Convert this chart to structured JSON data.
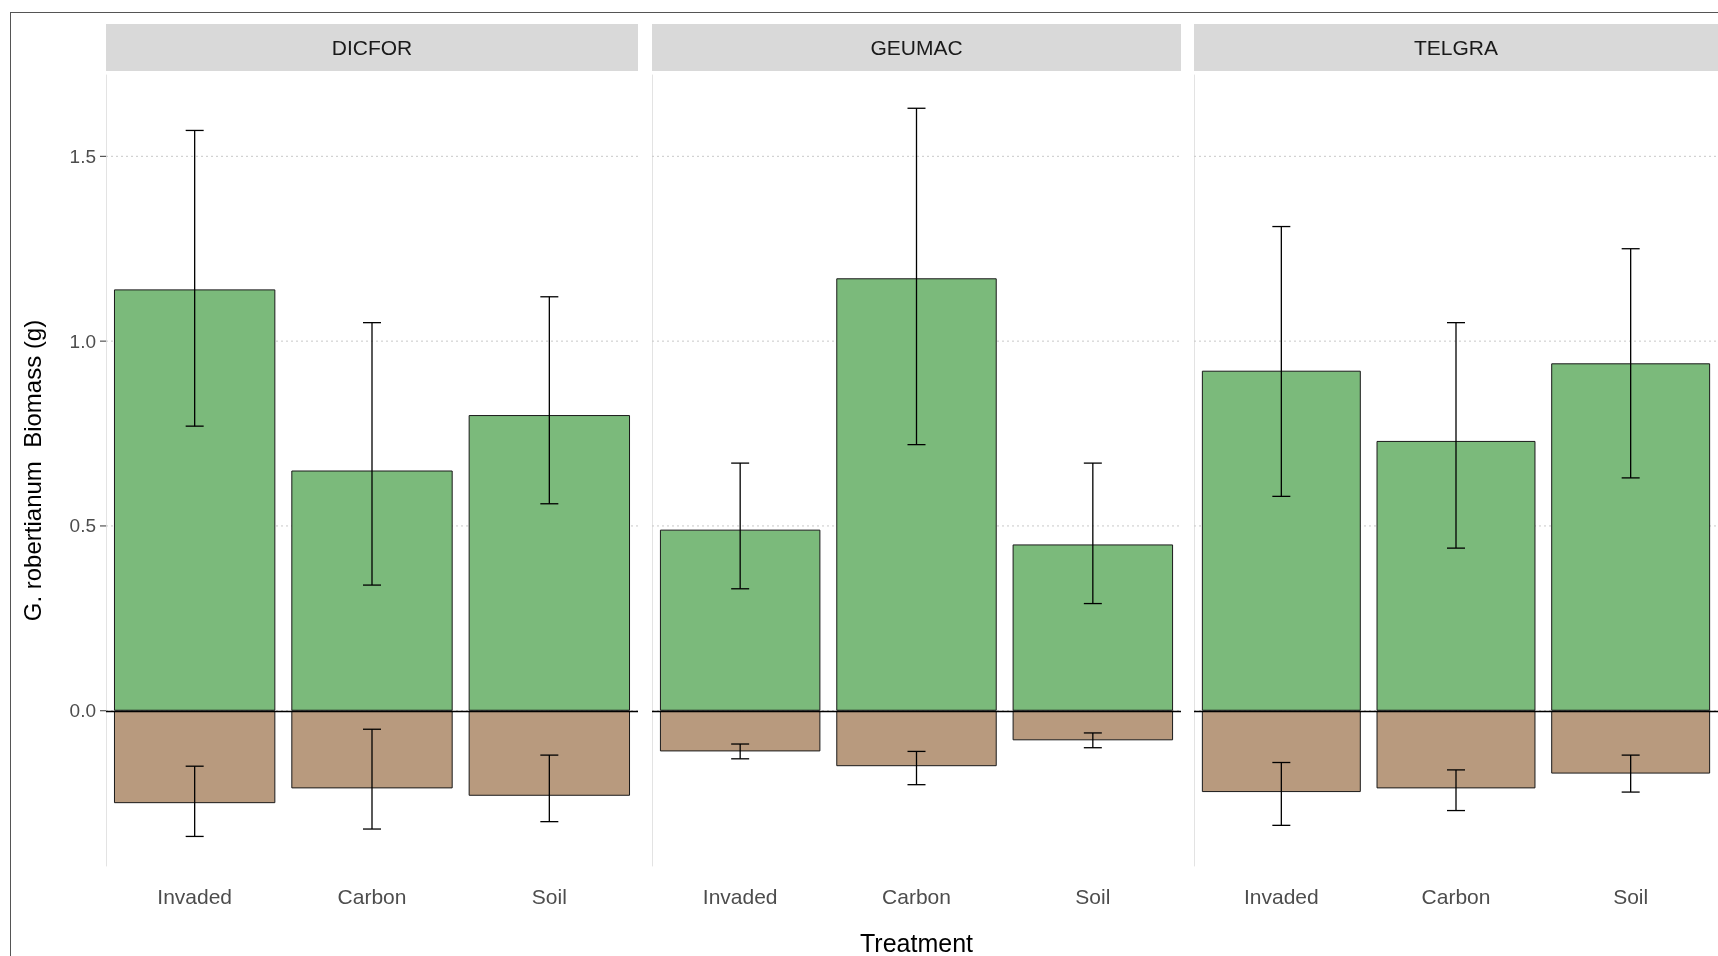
{
  "chart_data": [
    {
      "type": "bar",
      "title": "DICFOR",
      "ylabel": "G. robertianum  Biomass (g)",
      "categories": [
        "Invaded",
        "Carbon",
        "Soil"
      ],
      "stacked": true,
      "grid": "y",
      "ylim": [
        -0.42,
        1.72
      ],
      "yticks": [
        {
          "value": 0,
          "label": "0.0"
        },
        0.5,
        {
          "value": 1,
          "label": "1.0"
        },
        1.5
      ],
      "ref_lines": [
        {
          "axis": "y",
          "value": 0,
          "color": "#000000"
        }
      ],
      "series": [
        {
          "color": "#7bba7b",
          "values": [
            1.14,
            0.65,
            0.8
          ],
          "errors": [
            [
              0.77,
              1.57
            ],
            [
              0.34,
              1.05
            ],
            [
              0.56,
              1.12
            ]
          ]
        },
        {
          "color": "#b89a7e",
          "values": [
            -0.25,
            -0.21,
            -0.23
          ],
          "errors": [
            [
              -0.34,
              -0.15
            ],
            [
              -0.32,
              -0.05
            ],
            [
              -0.3,
              -0.12
            ]
          ]
        }
      ]
    },
    {
      "type": "bar",
      "title": "GEUMAC",
      "xlabel": "Treatment",
      "categories": [
        "Invaded",
        "Carbon",
        "Soil"
      ],
      "stacked": true,
      "grid": "y",
      "tick_labels": "x",
      "ylim": [
        -0.42,
        1.72
      ],
      "yticks": [
        0,
        0.5,
        1,
        1.5
      ],
      "ref_lines": [
        {
          "axis": "y",
          "value": 0,
          "color": "#000000"
        }
      ],
      "series": [
        {
          "color": "#7bba7b",
          "values": [
            0.49,
            1.17,
            0.45
          ],
          "errors": [
            [
              0.33,
              0.67
            ],
            [
              0.72,
              1.63
            ],
            [
              0.29,
              0.67
            ]
          ]
        },
        {
          "color": "#b89a7e",
          "values": [
            -0.11,
            -0.15,
            -0.08
          ],
          "errors": [
            [
              -0.13,
              -0.09
            ],
            [
              -0.2,
              -0.11
            ],
            [
              -0.1,
              -0.06
            ]
          ]
        }
      ]
    },
    {
      "type": "bar",
      "title": "TELGRA",
      "categories": [
        "Invaded",
        "Carbon",
        "Soil"
      ],
      "stacked": true,
      "grid": "y",
      "tick_labels": "x",
      "ylim": [
        -0.42,
        1.72
      ],
      "yticks": [
        0,
        0.5,
        1,
        1.5
      ],
      "ref_lines": [
        {
          "axis": "y",
          "value": 0,
          "color": "#000000"
        }
      ],
      "series": [
        {
          "color": "#7bba7b",
          "values": [
            0.92,
            0.73,
            0.94
          ],
          "errors": [
            [
              0.58,
              1.31
            ],
            [
              0.44,
              1.05
            ],
            [
              0.63,
              1.25
            ]
          ]
        },
        {
          "color": "#b89a7e",
          "values": [
            -0.22,
            -0.21,
            -0.17
          ],
          "errors": [
            [
              -0.31,
              -0.14
            ],
            [
              -0.27,
              -0.16
            ],
            [
              -0.22,
              -0.12
            ]
          ]
        }
      ]
    }
  ]
}
